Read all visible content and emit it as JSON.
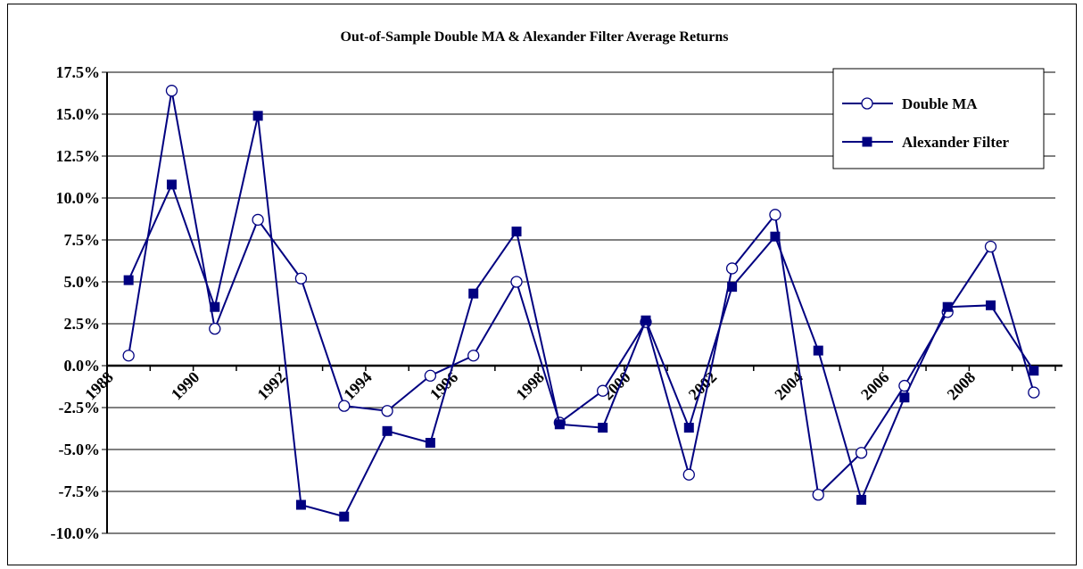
{
  "chart_data": {
    "type": "line",
    "title": "Out-of-Sample Double MA & Alexander Filter Average Returns",
    "ylim": [
      -10.0,
      17.5
    ],
    "y_ticks": [
      "17.5%",
      "15.0%",
      "12.5%",
      "10.0%",
      "7.5%",
      "5.0%",
      "2.5%",
      "0.0%",
      "-2.5%",
      "-5.0%",
      "-7.5%",
      "-10.0%"
    ],
    "x_tick_labels": [
      "1988",
      "1990",
      "1992",
      "1994",
      "1996",
      "1998",
      "2000",
      "2002",
      "2004",
      "2006",
      "2008"
    ],
    "x": [
      1988.5,
      1989.5,
      1990.5,
      1991.5,
      1992.5,
      1993.5,
      1994.5,
      1995.5,
      1996.5,
      1997.5,
      1998.5,
      1999.5,
      2000.5,
      2001.5,
      2002.5,
      2003.5,
      2004.5,
      2005.5,
      2006.5,
      2007.5,
      2008.5,
      2009.5
    ],
    "grid": true,
    "legend_position": "top-right",
    "series": [
      {
        "name": "Double MA",
        "color": "#000080",
        "marker": "open-circle",
        "values": [
          0.6,
          16.4,
          2.2,
          8.7,
          5.2,
          -2.4,
          -2.7,
          -0.6,
          0.6,
          5.0,
          -3.4,
          -1.5,
          2.6,
          -6.5,
          5.8,
          9.0,
          -7.7,
          -5.2,
          -1.2,
          3.2,
          7.1,
          -1.6
        ]
      },
      {
        "name": "Alexander Filter",
        "color": "#000080",
        "marker": "filled-square",
        "values": [
          5.1,
          10.8,
          3.5,
          14.9,
          -8.3,
          -9.0,
          -3.9,
          -4.6,
          4.3,
          8.0,
          -3.5,
          -3.7,
          2.7,
          -3.7,
          4.7,
          7.7,
          0.9,
          -8.0,
          -1.9,
          3.5,
          3.6,
          -0.3
        ]
      }
    ]
  }
}
